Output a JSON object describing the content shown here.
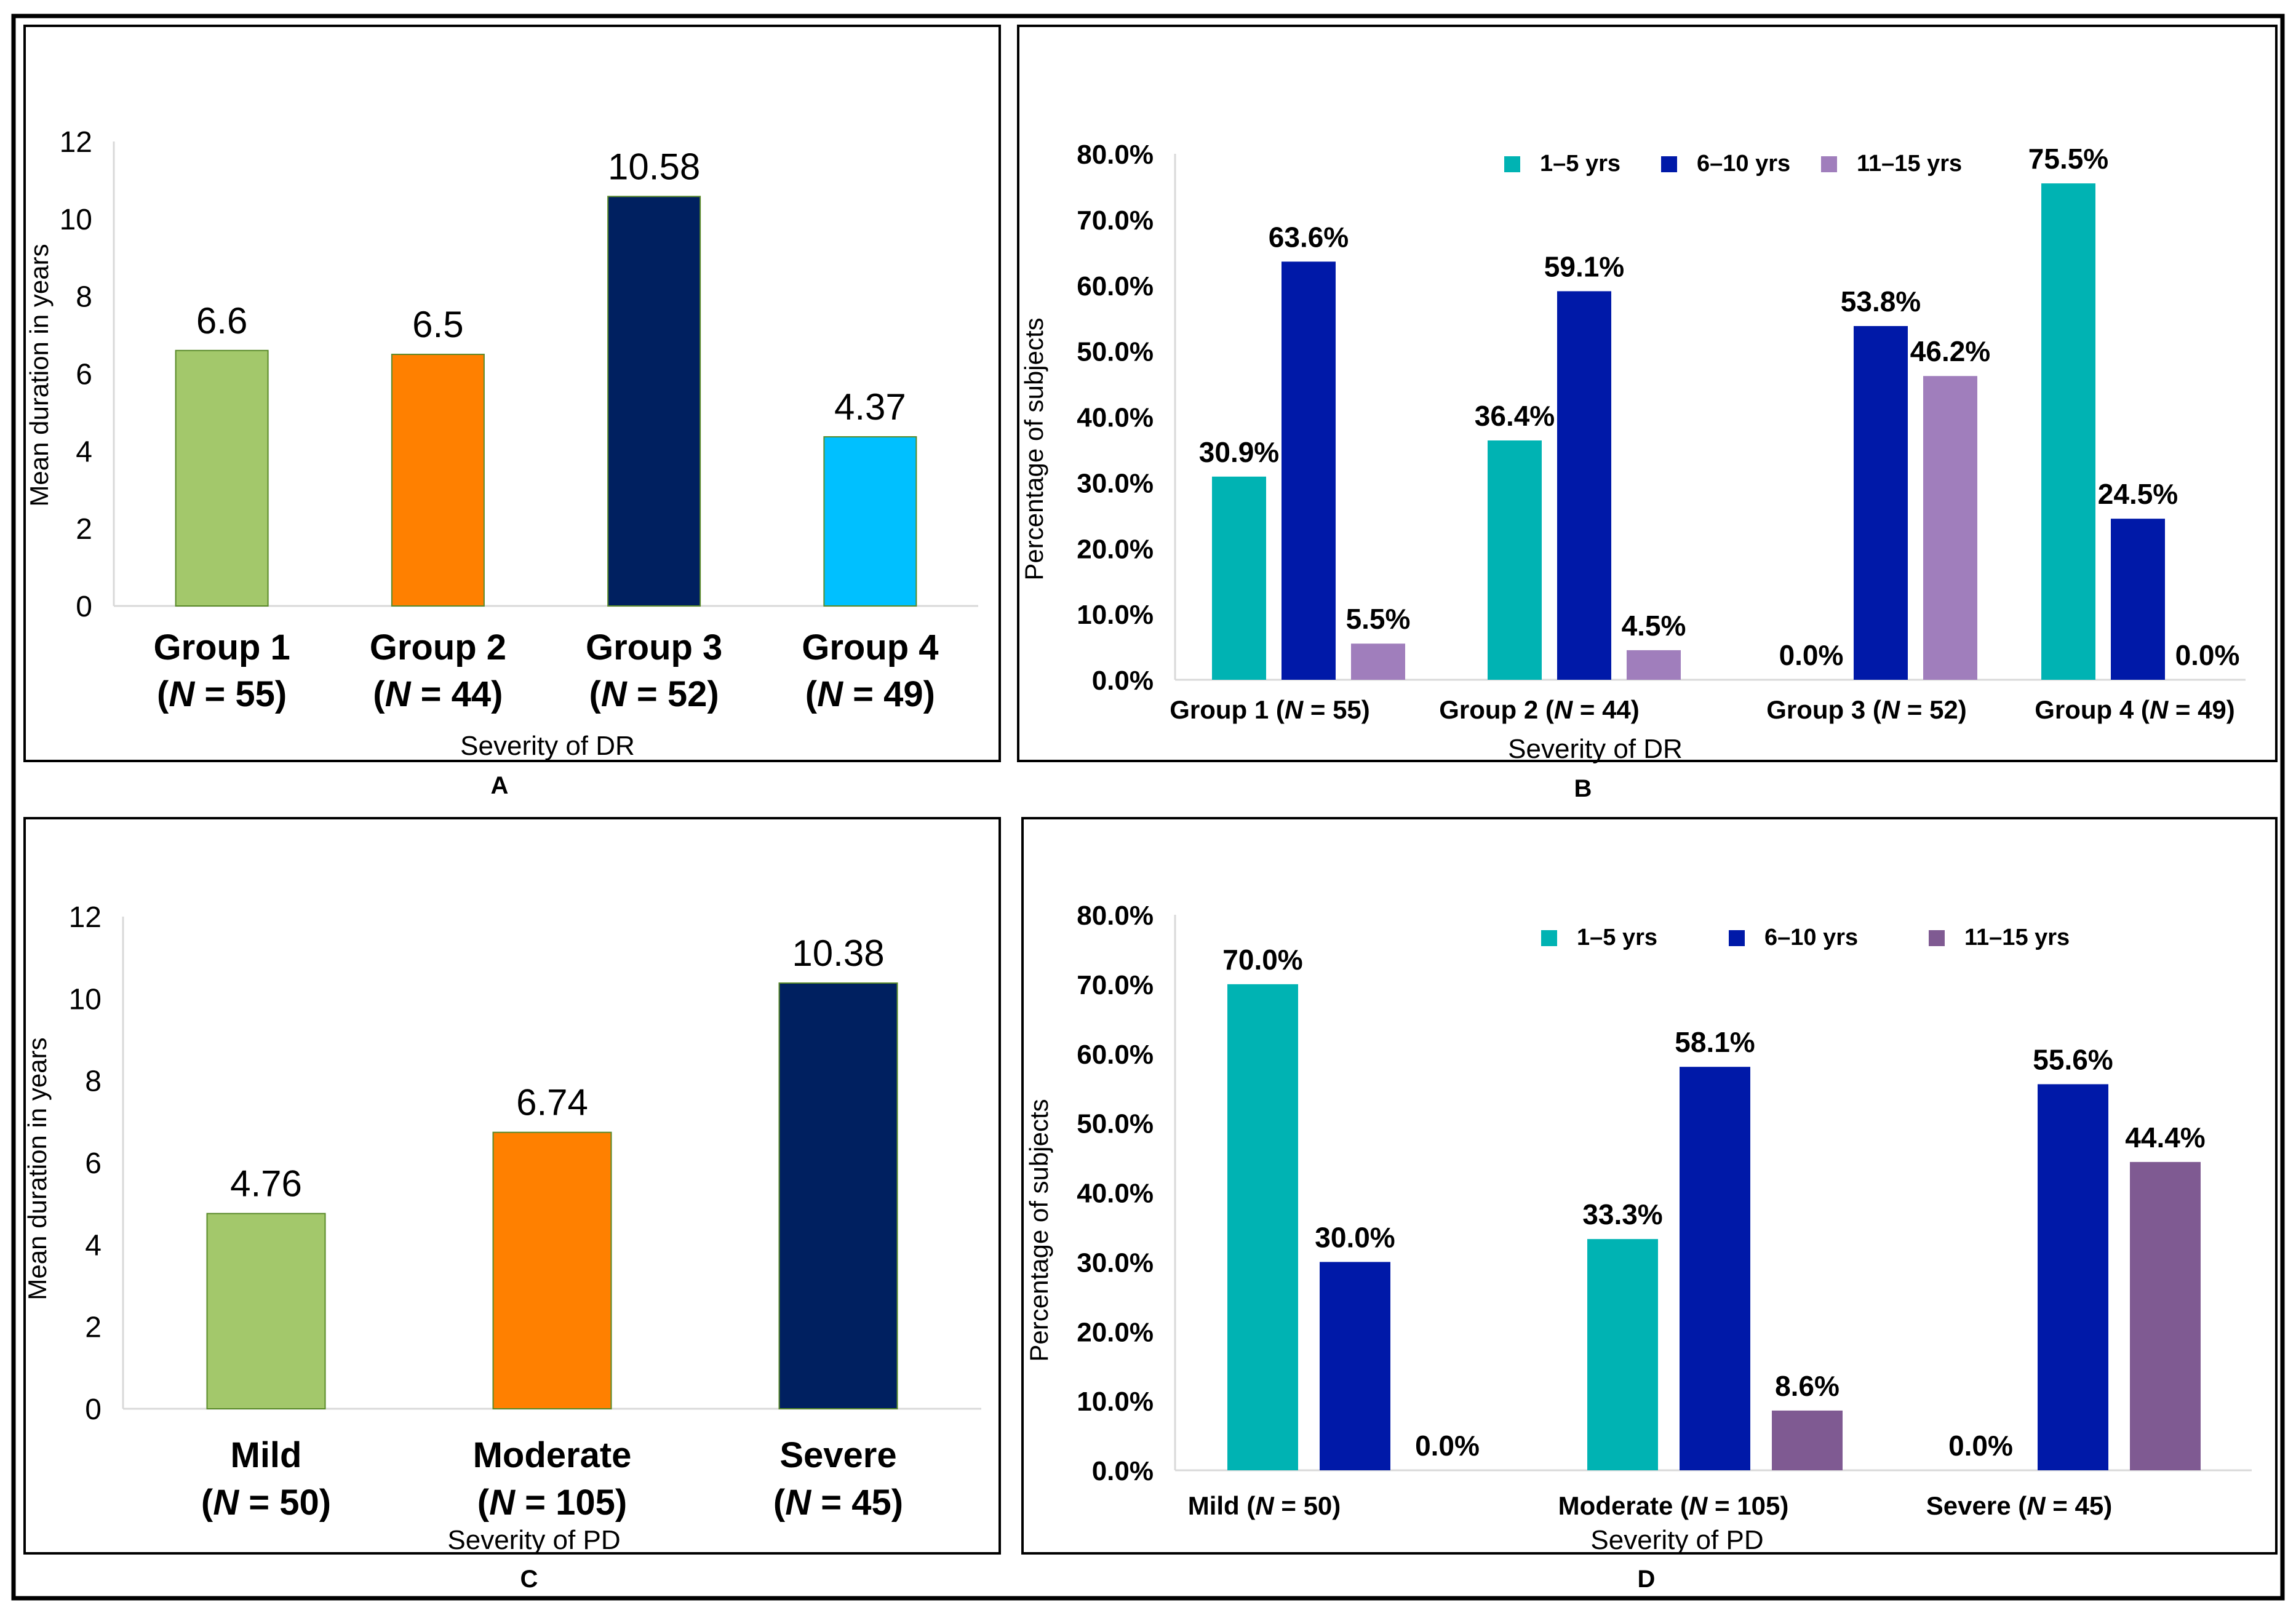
{
  "chart_data": [
    {
      "panel": "A",
      "type": "bar",
      "categories": [
        {
          "name": "Group 1",
          "n": "55"
        },
        {
          "name": "Group 2",
          "n": "44"
        },
        {
          "name": "Group 3",
          "n": "52"
        },
        {
          "name": "Group 4",
          "n": "49"
        }
      ],
      "values": [
        6.6,
        6.5,
        10.58,
        4.37
      ],
      "value_labels": [
        "6.6",
        "6.5",
        "10.58",
        "4.37"
      ],
      "colors": [
        "#a3c86b",
        "#ff8000",
        "#002060",
        "#00c0ff"
      ],
      "ylim": [
        0,
        12
      ],
      "yticks": [
        0,
        2,
        4,
        6,
        8,
        10,
        12
      ],
      "xlabel": "Severity of DR",
      "ylabel": "Mean duration in years"
    },
    {
      "panel": "B",
      "type": "bar",
      "categories": [
        {
          "name": "Group 1",
          "n": "55"
        },
        {
          "name": "Group 2",
          "n": "44"
        },
        {
          "name": "Group 3",
          "n": "52"
        },
        {
          "name": "Group 4",
          "n": "49"
        }
      ],
      "series": [
        {
          "name": "1–5 yrs",
          "color": "#00b3b3",
          "values": [
            30.9,
            36.4,
            0.0,
            75.5
          ],
          "labels": [
            "30.9%",
            "36.4%",
            "0.0%",
            "75.5%"
          ]
        },
        {
          "name": "6–10 yrs",
          "color": "#0019a8",
          "values": [
            63.6,
            59.1,
            53.8,
            24.5
          ],
          "labels": [
            "63.6%",
            "59.1%",
            "53.8%",
            "24.5%"
          ]
        },
        {
          "name": "11–15 yrs",
          "color": "#a07ebc",
          "values": [
            5.5,
            4.5,
            46.2,
            0.0
          ],
          "labels": [
            "5.5%",
            "4.5%",
            "46.2%",
            "0.0%"
          ]
        }
      ],
      "ylim": [
        0,
        80
      ],
      "yticks": [
        "0.0%",
        "10.0%",
        "20.0%",
        "30.0%",
        "40.0%",
        "50.0%",
        "60.0%",
        "70.0%",
        "80.0%"
      ],
      "xlabel": "Severity of DR",
      "ylabel": "Percentage of subjects"
    },
    {
      "panel": "C",
      "type": "bar",
      "categories": [
        {
          "name": "Mild",
          "n": "50"
        },
        {
          "name": "Moderate",
          "n": "105"
        },
        {
          "name": "Severe",
          "n": "45"
        }
      ],
      "values": [
        4.76,
        6.74,
        10.38
      ],
      "value_labels": [
        "4.76",
        "6.74",
        "10.38"
      ],
      "colors": [
        "#a3c86b",
        "#ff8000",
        "#002060"
      ],
      "ylim": [
        0,
        12
      ],
      "yticks": [
        0,
        2,
        4,
        6,
        8,
        10,
        12
      ],
      "xlabel": "Severity of PD",
      "ylabel": "Mean duration in years"
    },
    {
      "panel": "D",
      "type": "bar",
      "categories": [
        {
          "name": "Mild ",
          "n": "50"
        },
        {
          "name": "Moderate",
          "n": "105"
        },
        {
          "name": "Severe ",
          "n": "45"
        }
      ],
      "series": [
        {
          "name": "1–5 yrs",
          "color": "#00b3b3",
          "values": [
            70.0,
            33.3,
            0.0
          ],
          "labels": [
            "70.0%",
            "33.3%",
            "0.0%"
          ]
        },
        {
          "name": "6–10 yrs",
          "color": "#0019a8",
          "values": [
            30.0,
            58.1,
            55.6
          ],
          "labels": [
            "30.0%",
            "58.1%",
            "55.6%"
          ]
        },
        {
          "name": "11–15 yrs",
          "color": "#7f5a92",
          "values": [
            0.0,
            8.6,
            44.4
          ],
          "labels": [
            "0.0%",
            "8.6%",
            "44.4%"
          ]
        }
      ],
      "ylim": [
        0,
        80
      ],
      "yticks": [
        "0.0%",
        "10.0%",
        "20.0%",
        "30.0%",
        "40.0%",
        "50.0%",
        "60.0%",
        "70.0%",
        "80.0%"
      ],
      "xlabel": "Severity of PD",
      "ylabel": "Percentage of subjects"
    }
  ]
}
